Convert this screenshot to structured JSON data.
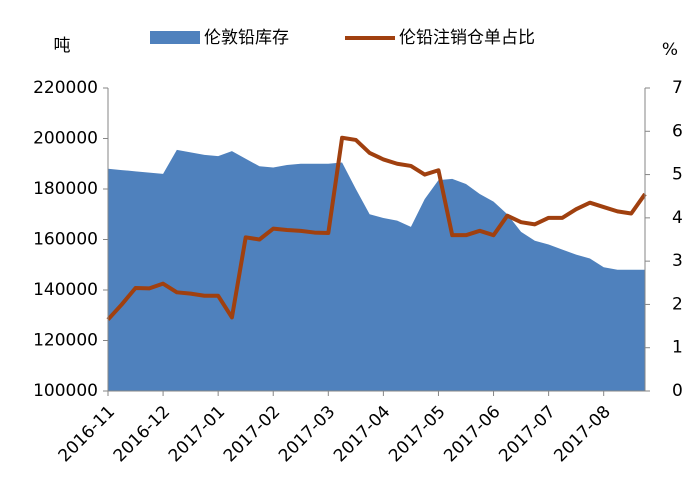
{
  "chart_data": {
    "type": "area_line",
    "y_unit": "吨",
    "y2_unit": "%",
    "categories": [
      "2016-11",
      null,
      null,
      null,
      "2016-12",
      null,
      null,
      null,
      "2017-01",
      null,
      null,
      null,
      "2017-02",
      null,
      null,
      null,
      "2017-03",
      null,
      null,
      null,
      "2017-04",
      null,
      null,
      null,
      "2017-05",
      null,
      null,
      null,
      "2017-06",
      null,
      null,
      null,
      "2017-07",
      null,
      null,
      null,
      "2017-08",
      null,
      null,
      null
    ],
    "series": [
      {
        "name": "伦敦铅库存",
        "color": "#4f81bd",
        "axis": "y",
        "values": [
          188000,
          187500,
          187000,
          186500,
          186000,
          195500,
          194500,
          193500,
          193000,
          195000,
          192000,
          189000,
          188500,
          189500,
          190000,
          190000,
          190000,
          190500,
          180000,
          170000,
          168500,
          167500,
          165000,
          176000,
          183500,
          184000,
          182000,
          178000,
          175000,
          170000,
          163000,
          159500,
          158000,
          156000,
          154000,
          152500,
          149000,
          148000,
          148000,
          148000
        ]
      },
      {
        "name": "伦铅注销仓单占比",
        "color": "#a0400f",
        "axis": "y2",
        "values": [
          16.5,
          20,
          23.8,
          23.7,
          24.8,
          22.8,
          22.5,
          22,
          22,
          17,
          35.5,
          35,
          37.5,
          37.2,
          37,
          36.6,
          36.5,
          58.5,
          58,
          55,
          53.5,
          52.5,
          52,
          50,
          51,
          36,
          36,
          37,
          36,
          40.5,
          39,
          38.5,
          40,
          40,
          42,
          43.5,
          42.5,
          41.5,
          41,
          45.5
        ]
      }
    ],
    "ylim": [
      100000,
      220000
    ],
    "yticks": [
      100000,
      120000,
      140000,
      160000,
      180000,
      200000,
      220000
    ],
    "y2lim": [
      0,
      70
    ],
    "y2ticks": [
      0,
      10,
      20,
      30,
      40,
      50,
      60,
      70
    ]
  }
}
